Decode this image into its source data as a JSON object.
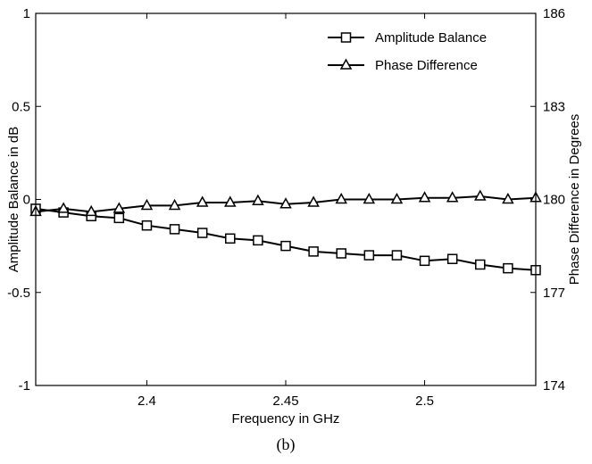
{
  "chart_data": {
    "type": "line",
    "caption": "(b)",
    "xlabel": "Frequency in GHz",
    "ylabel_left": "Amplitude Balance in dB",
    "ylabel_right": "Phase Difference in Degrees",
    "xlim": [
      2.36,
      2.54
    ],
    "ylim_left": [
      -1,
      1
    ],
    "ylim_right": [
      174,
      186
    ],
    "x_ticks": [
      "2.4",
      "2.45",
      "2.5"
    ],
    "y_left_ticks": [
      "1",
      "0.5",
      "0",
      "-0.5",
      "-1"
    ],
    "y_right_ticks": [
      "186",
      "183",
      "180",
      "177",
      "174"
    ],
    "grid": false,
    "legend_position": "top-right",
    "series": [
      {
        "name": "Amplitude Balance",
        "axis": "left",
        "marker": "square",
        "x": [
          2.36,
          2.37,
          2.38,
          2.39,
          2.4,
          2.41,
          2.42,
          2.43,
          2.44,
          2.45,
          2.46,
          2.47,
          2.48,
          2.49,
          2.5,
          2.51,
          2.52,
          2.53,
          2.54
        ],
        "values": [
          -0.05,
          -0.07,
          -0.09,
          -0.1,
          -0.14,
          -0.16,
          -0.18,
          -0.21,
          -0.22,
          -0.25,
          -0.28,
          -0.29,
          -0.3,
          -0.3,
          -0.33,
          -0.32,
          -0.35,
          -0.37,
          -0.38
        ]
      },
      {
        "name": "Phase Difference",
        "axis": "right",
        "marker": "triangle",
        "x": [
          2.36,
          2.37,
          2.38,
          2.39,
          2.4,
          2.41,
          2.42,
          2.43,
          2.44,
          2.45,
          2.46,
          2.47,
          2.48,
          2.49,
          2.5,
          2.51,
          2.52,
          2.53,
          2.54
        ],
        "values": [
          179.6,
          179.7,
          179.6,
          179.7,
          179.8,
          179.8,
          179.9,
          179.9,
          179.95,
          179.85,
          179.9,
          180.0,
          180.0,
          180.0,
          180.05,
          180.05,
          180.1,
          180.0,
          180.05
        ]
      }
    ]
  }
}
